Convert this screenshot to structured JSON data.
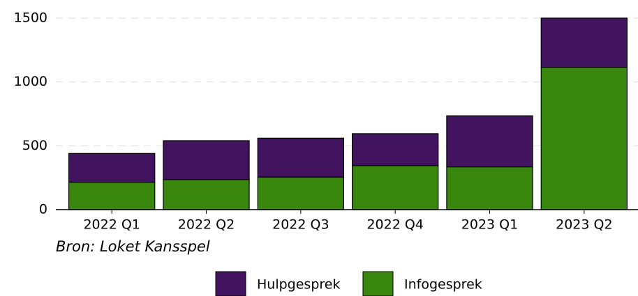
{
  "chart_data": {
    "type": "stacked_bar",
    "categories": [
      "2022 Q1",
      "2022 Q2",
      "2022 Q3",
      "2022 Q4",
      "2023 Q1",
      "2023 Q2"
    ],
    "series": [
      {
        "name": "Infogesprek",
        "color": "#39870c",
        "values": [
          215,
          235,
          255,
          345,
          335,
          1115
        ]
      },
      {
        "name": "Hulpgesprek",
        "color": "#42145f",
        "values": [
          225,
          305,
          305,
          250,
          400,
          385
        ]
      }
    ],
    "ylim": [
      0,
      1500
    ],
    "yticks": [
      0,
      500,
      1000,
      1500
    ],
    "grid": true,
    "source": "Bron: Loket Kansspel"
  }
}
